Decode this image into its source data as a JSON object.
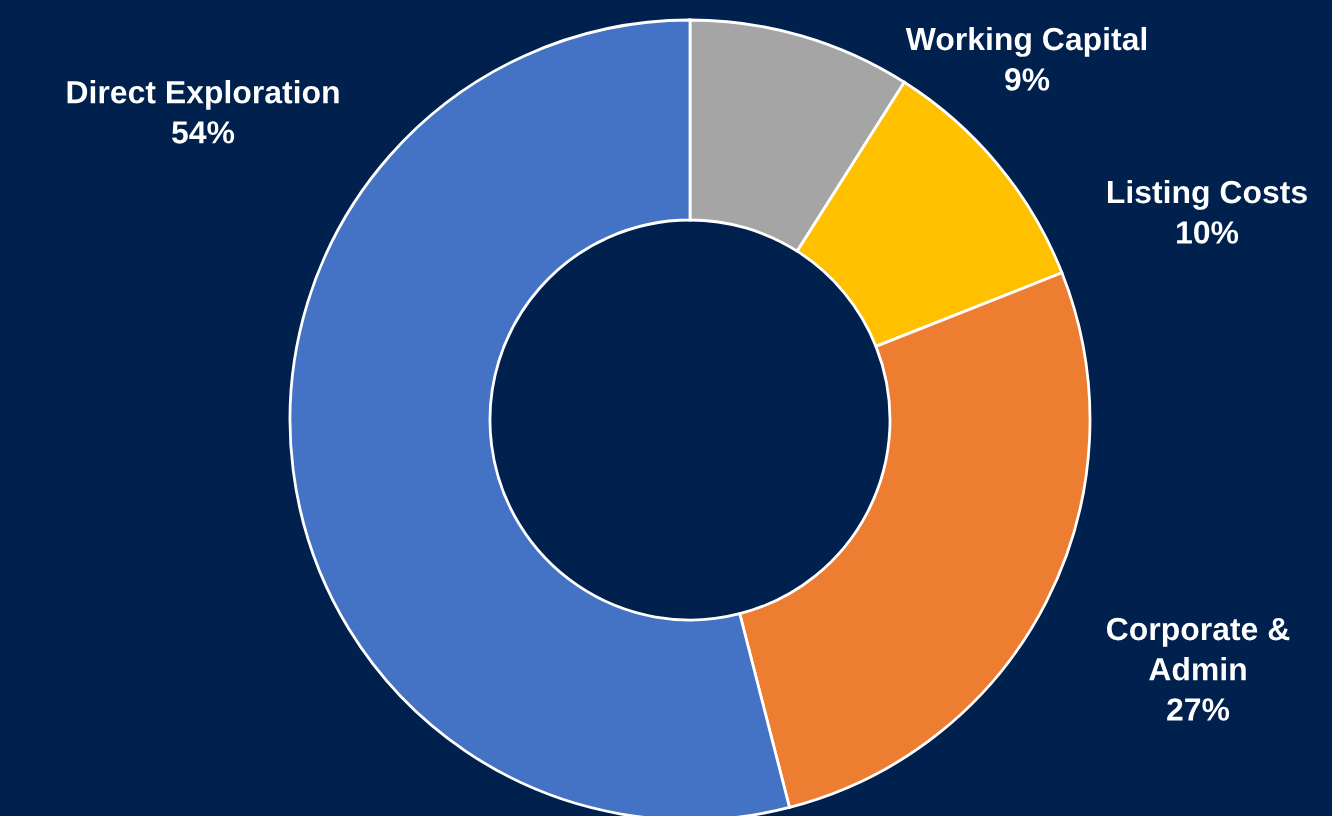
{
  "chart_data": {
    "type": "donut",
    "categories": [
      "Working Capital",
      "Listing Costs",
      "Corporate &\nAdmin",
      "Direct Exploration"
    ],
    "values": [
      9,
      10,
      27,
      54
    ],
    "colors": [
      "#a5a5a5",
      "#ffc000",
      "#ed7d31",
      "#4472c4"
    ],
    "value_labels": [
      "9%",
      "10%",
      "27%",
      "54%"
    ],
    "legend": false
  }
}
